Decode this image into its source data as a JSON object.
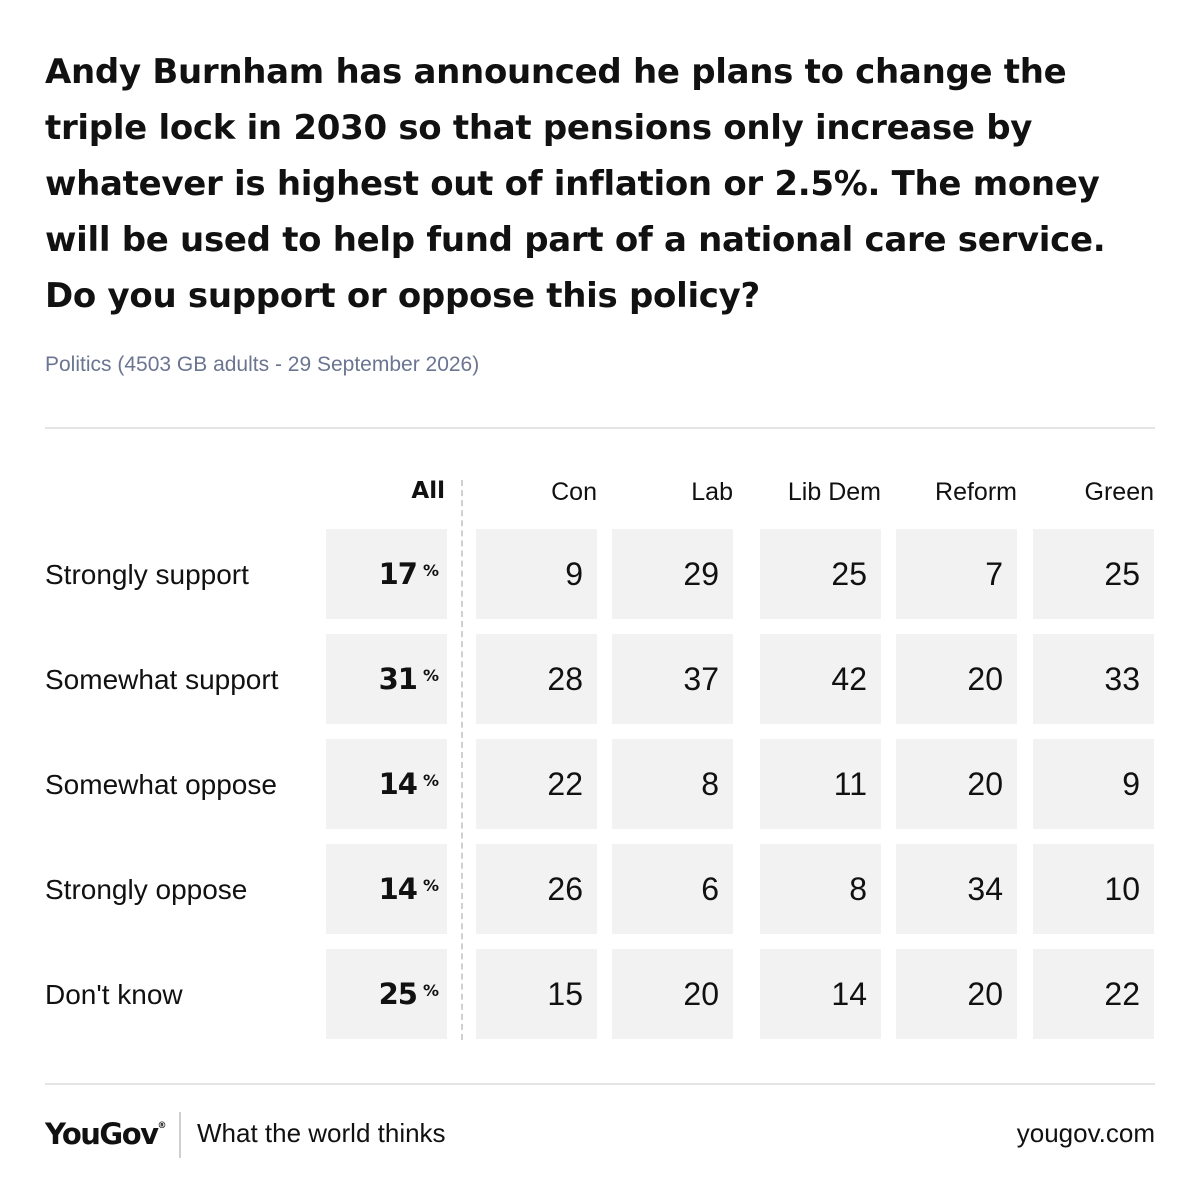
{
  "title": "Andy Burnham has announced he plans to change the triple lock in 2030 so that pensions only increase by whatever is highest out of inflation or 2.5%. The money will be used to help fund part of a national care service. Do you support or oppose this policy?",
  "subtitle": "Politics (4503 GB adults - 29 September 2026)",
  "chart_data": {
    "type": "table",
    "title": "Andy Burnham has announced he plans to change the triple lock in 2030 so that pensions only increase by whatever is highest out of inflation or 2.5%. The money will be used to help fund part of a national care service. Do you support or oppose this policy?",
    "subtitle": "Politics (4503 GB adults - 29 September 2026)",
    "columns": [
      "All",
      "Con",
      "Lab",
      "Lib Dem",
      "Reform",
      "Green"
    ],
    "pct_symbol": "%",
    "rows": [
      {
        "label": "Strongly support",
        "values": [
          17,
          9,
          29,
          25,
          7,
          25
        ]
      },
      {
        "label": "Somewhat support",
        "values": [
          31,
          28,
          37,
          42,
          20,
          33
        ]
      },
      {
        "label": "Somewhat oppose",
        "values": [
          14,
          22,
          8,
          11,
          20,
          9
        ]
      },
      {
        "label": "Strongly oppose",
        "values": [
          14,
          26,
          6,
          8,
          34,
          10
        ]
      },
      {
        "label": "Don't know",
        "values": [
          25,
          15,
          20,
          14,
          20,
          22
        ]
      }
    ],
    "colors": {
      "cell_background": "#f2f2f2",
      "subtitle": "#6b7591"
    }
  },
  "footer": {
    "logo": "YouGov",
    "tagline": "What the world thinks",
    "site": "yougov.com"
  }
}
